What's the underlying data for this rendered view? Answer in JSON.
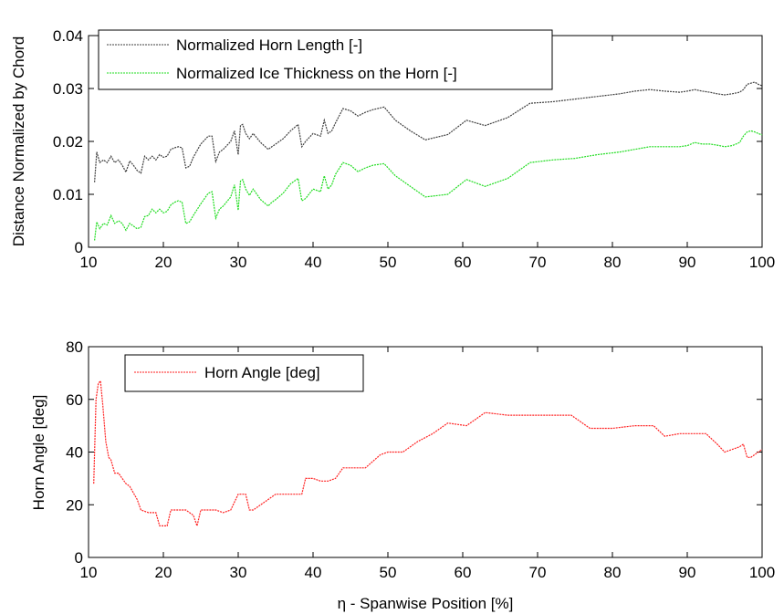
{
  "chart_data": [
    {
      "type": "line",
      "title": "",
      "xlabel": "",
      "ylabel": "Distance Normalized by Chord",
      "xlim": [
        10,
        100
      ],
      "ylim": [
        0,
        0.04
      ],
      "xticks": [
        "10",
        "20",
        "30",
        "40",
        "50",
        "60",
        "70",
        "80",
        "90",
        "100"
      ],
      "yticks": [
        "0",
        "0.01",
        "0.02",
        "0.03",
        "0.04"
      ],
      "grid": false,
      "legend": "top-left",
      "series": [
        {
          "name": "Normalized Horn Length [-]",
          "color": "#404040",
          "x": [
            10.8,
            11.1,
            11.5,
            12.0,
            12.5,
            13.0,
            13.5,
            14.0,
            14.5,
            15.0,
            15.5,
            16.0,
            16.5,
            17.0,
            17.5,
            18.0,
            18.5,
            19.0,
            19.5,
            20.0,
            20.5,
            21.0,
            21.5,
            22.0,
            22.5,
            23.0,
            23.5,
            24.0,
            25.0,
            26.0,
            26.5,
            27.0,
            27.5,
            28.0,
            29.0,
            29.5,
            30.0,
            30.3,
            30.6,
            31.0,
            31.5,
            32.0,
            33.0,
            34.0,
            34.5,
            35.0,
            36.0,
            37.0,
            38.0,
            38.5,
            39.0,
            40.0,
            41.0,
            41.5,
            42.0,
            42.5,
            43.0,
            44.0,
            45.0,
            46.0,
            47.0,
            48.0,
            49.5,
            51.0,
            53.0,
            55.0,
            58.0,
            60.5,
            63.0,
            66.0,
            69.0,
            72.0,
            75.0,
            78.0,
            81.0,
            83.0,
            85.0,
            87.0,
            89.0,
            90.0,
            91.0,
            92.0,
            93.0,
            94.0,
            95.0,
            96.0,
            97.0,
            97.5,
            98.0,
            98.5,
            99.0,
            99.5,
            100.0
          ],
          "values": [
            0.0123,
            0.018,
            0.016,
            0.0165,
            0.016,
            0.0172,
            0.016,
            0.0165,
            0.0155,
            0.0142,
            0.0163,
            0.0155,
            0.0145,
            0.014,
            0.0172,
            0.0165,
            0.0172,
            0.0165,
            0.0175,
            0.017,
            0.0172,
            0.0185,
            0.0188,
            0.019,
            0.0188,
            0.015,
            0.0153,
            0.017,
            0.0195,
            0.021,
            0.021,
            0.0162,
            0.018,
            0.0185,
            0.02,
            0.022,
            0.0175,
            0.023,
            0.0232,
            0.0215,
            0.0205,
            0.0215,
            0.0198,
            0.0185,
            0.019,
            0.0195,
            0.0205,
            0.022,
            0.0232,
            0.019,
            0.02,
            0.0215,
            0.021,
            0.024,
            0.0215,
            0.022,
            0.0235,
            0.0262,
            0.0258,
            0.0248,
            0.0255,
            0.026,
            0.0265,
            0.024,
            0.022,
            0.0203,
            0.0213,
            0.024,
            0.023,
            0.0245,
            0.0272,
            0.0275,
            0.028,
            0.0285,
            0.029,
            0.0295,
            0.0298,
            0.0295,
            0.0293,
            0.0295,
            0.0298,
            0.0295,
            0.0293,
            0.029,
            0.0288,
            0.029,
            0.0293,
            0.0298,
            0.0308,
            0.031,
            0.0312,
            0.0308,
            0.0305
          ]
        },
        {
          "name": "Normalized Ice Thickness on the Horn [-]",
          "color": "#22dd22",
          "x": [
            10.8,
            11.1,
            11.5,
            12.0,
            12.5,
            13.0,
            13.5,
            14.0,
            14.5,
            15.0,
            15.5,
            16.0,
            16.5,
            17.0,
            17.5,
            18.0,
            18.5,
            19.0,
            19.5,
            20.0,
            20.5,
            21.0,
            21.5,
            22.0,
            22.5,
            23.0,
            23.5,
            24.0,
            25.0,
            26.0,
            26.5,
            27.0,
            27.5,
            28.0,
            29.0,
            29.5,
            30.0,
            30.3,
            30.6,
            31.0,
            31.5,
            32.0,
            33.0,
            34.0,
            34.5,
            35.0,
            36.0,
            37.0,
            38.0,
            38.5,
            39.0,
            40.0,
            41.0,
            41.5,
            42.0,
            42.5,
            43.0,
            44.0,
            45.0,
            46.0,
            47.0,
            48.0,
            49.5,
            51.0,
            53.0,
            55.0,
            58.0,
            60.5,
            63.0,
            66.0,
            69.0,
            72.0,
            75.0,
            78.0,
            81.0,
            83.0,
            85.0,
            87.0,
            89.0,
            90.0,
            91.0,
            92.0,
            93.0,
            94.0,
            95.0,
            96.0,
            97.0,
            97.5,
            98.0,
            98.5,
            99.0,
            99.5,
            100.0
          ],
          "values": [
            0.0013,
            0.0048,
            0.0035,
            0.0045,
            0.0042,
            0.006,
            0.0045,
            0.005,
            0.0045,
            0.0032,
            0.0045,
            0.004,
            0.0035,
            0.0038,
            0.0058,
            0.006,
            0.0072,
            0.0065,
            0.0072,
            0.0065,
            0.0068,
            0.008,
            0.0085,
            0.0088,
            0.0085,
            0.0045,
            0.0048,
            0.006,
            0.0082,
            0.0102,
            0.0105,
            0.0055,
            0.0072,
            0.0078,
            0.0095,
            0.0118,
            0.007,
            0.0125,
            0.0128,
            0.011,
            0.0098,
            0.011,
            0.009,
            0.0078,
            0.0085,
            0.009,
            0.0102,
            0.012,
            0.013,
            0.0088,
            0.0092,
            0.011,
            0.0105,
            0.0135,
            0.011,
            0.0118,
            0.0138,
            0.016,
            0.0155,
            0.0143,
            0.015,
            0.0155,
            0.0158,
            0.0135,
            0.0115,
            0.0095,
            0.01,
            0.0128,
            0.0115,
            0.013,
            0.016,
            0.0165,
            0.0168,
            0.0175,
            0.018,
            0.0185,
            0.019,
            0.019,
            0.019,
            0.0192,
            0.0198,
            0.0195,
            0.0195,
            0.0193,
            0.019,
            0.0192,
            0.0198,
            0.021,
            0.0218,
            0.022,
            0.0218,
            0.0215,
            0.0212
          ]
        }
      ]
    },
    {
      "type": "line",
      "title": "",
      "xlabel": "η - Spanwise Position [%]",
      "ylabel": "Horn Angle [deg]",
      "xlim": [
        10,
        100
      ],
      "ylim": [
        0,
        80
      ],
      "xticks": [
        "10",
        "20",
        "30",
        "40",
        "50",
        "60",
        "70",
        "80",
        "90",
        "100"
      ],
      "yticks": [
        "0",
        "20",
        "40",
        "60",
        "80"
      ],
      "grid": false,
      "legend": "top-left",
      "series": [
        {
          "name": "Horn Angle [deg]",
          "color": "#ff2222",
          "x": [
            10.7,
            11.0,
            11.3,
            11.6,
            11.9,
            12.3,
            12.7,
            13.0,
            13.5,
            14.0,
            14.5,
            15.0,
            15.5,
            16.5,
            17.0,
            18.0,
            19.0,
            19.5,
            20.0,
            20.5,
            21.0,
            22.0,
            23.0,
            24.0,
            24.5,
            25.0,
            26.0,
            27.0,
            28.0,
            29.0,
            30.0,
            31.0,
            31.5,
            32.0,
            33.0,
            34.0,
            35.0,
            36.0,
            37.0,
            38.0,
            38.5,
            39.0,
            40.0,
            41.0,
            42.0,
            43.0,
            44.0,
            45.0,
            46.0,
            47.0,
            49.0,
            50.0,
            52.0,
            54.0,
            56.0,
            58.0,
            60.5,
            63.0,
            66.0,
            69.0,
            72.0,
            74.5,
            77.0,
            80.0,
            83.0,
            85.5,
            87.0,
            89.0,
            91.0,
            92.5,
            94.0,
            95.0,
            96.0,
            97.0,
            97.5,
            98.0,
            98.5,
            99.0,
            99.5,
            100.0
          ],
          "values": [
            28,
            60,
            66,
            67,
            58,
            44,
            38,
            37,
            32,
            32,
            30,
            28,
            27,
            22,
            18,
            17,
            17,
            12,
            12,
            12,
            18,
            18,
            18,
            16,
            12,
            18,
            18,
            18,
            17,
            18,
            24,
            24,
            18,
            18,
            20,
            22,
            24,
            24,
            24,
            24,
            24,
            30,
            30,
            29,
            29,
            30,
            34,
            34,
            34,
            34,
            39,
            40,
            40,
            44,
            47,
            51,
            50,
            55,
            54,
            54,
            54,
            54,
            49,
            49,
            50,
            50,
            46,
            47,
            47,
            47,
            43,
            40,
            41,
            42,
            43,
            38,
            38,
            39,
            40,
            41
          ]
        }
      ]
    }
  ]
}
